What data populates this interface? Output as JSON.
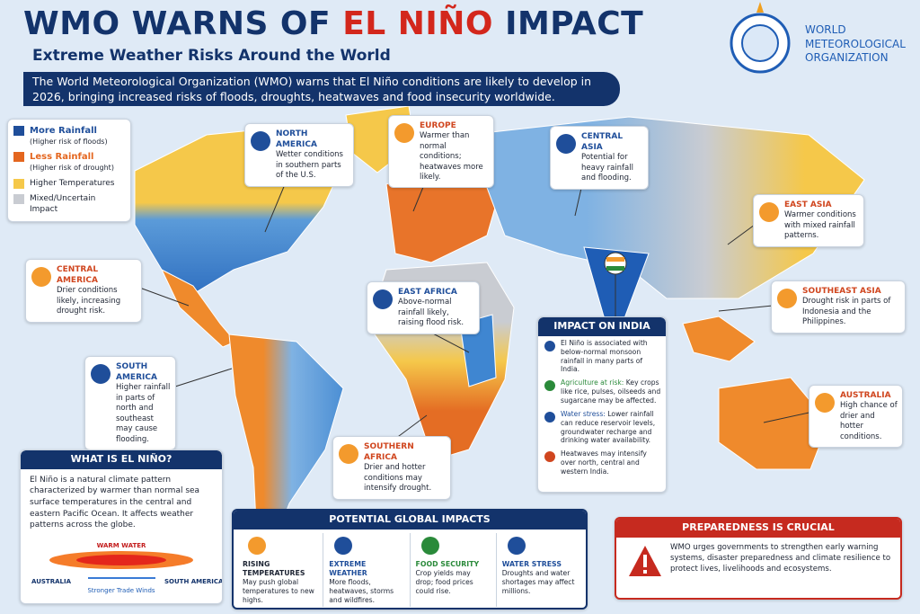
{
  "header": {
    "title_start": "WMO WARNS OF",
    "title_highlight": "EL NIÑO",
    "title_end": "IMPACT",
    "subtitle": "Extreme Weather Risks Around the World",
    "org_lines": [
      "WORLD",
      "METEOROLOGICAL",
      "ORGANIZATION"
    ]
  },
  "intro": "The World Meteorological Organization (WMO) warns that El Niño conditions are likely to develop in 2026, bringing increased risks of floods, droughts, heatwaves and food insecurity worldwide.",
  "legend": [
    {
      "label": "More Rainfall",
      "note": "(Higher risk of floods)"
    },
    {
      "label": "Less Rainfall",
      "note": "(Higher risk of drought)"
    },
    {
      "label": "Higher Temperatures"
    },
    {
      "label": "Mixed/Uncertain Impact"
    }
  ],
  "regions": [
    {
      "title": "NORTH AMERICA",
      "text": "Wetter conditions in southern parts of the U.S."
    },
    {
      "title": "EUROPE",
      "text": "Warmer than normal conditions; heatwaves more likely."
    },
    {
      "title": "CENTRAL ASIA",
      "text": "Potential for heavy rainfall and flooding."
    },
    {
      "title": "EAST ASIA",
      "text": "Warmer conditions with mixed rainfall patterns."
    },
    {
      "title": "CENTRAL AMERICA",
      "text": "Drier conditions likely, increasing drought risk."
    },
    {
      "title": "EAST AFRICA",
      "text": "Above-normal rainfall likely, raising flood risk."
    },
    {
      "title": "SOUTHEAST ASIA",
      "text": "Drought risk in parts of Indonesia and the Philippines."
    },
    {
      "title": "SOUTH AMERICA",
      "text": "Higher rainfall in parts of north and southeast may cause flooding."
    },
    {
      "title": "AUSTRALIA",
      "text": "High chance of drier and hotter conditions."
    },
    {
      "title": "SOUTHERN AFRICA",
      "text": "Drier and hotter conditions may intensify drought."
    }
  ],
  "india": {
    "title": "IMPACT ON INDIA",
    "items": [
      {
        "text": "El Niño is associated with below-normal monsoon rainfall in many parts of India."
      },
      {
        "lead": "Agriculture at risk:",
        "text": "Key crops like rice, pulses, oilseeds and sugarcane may be affected."
      },
      {
        "lead": "Water stress:",
        "text": "Lower rainfall can reduce reservoir levels, groundwater recharge and drinking water availability."
      },
      {
        "text": "Heatwaves may intensify over north, central and western India."
      }
    ]
  },
  "what_is": {
    "title": "WHAT IS EL NIÑO?",
    "text": "El Niño is a natural climate pattern characterized by warmer than normal sea surface temperatures in the central and eastern Pacific Ocean. It affects weather patterns across the globe.",
    "warm_water": "WARM WATER",
    "left": "AUSTRALIA",
    "right": "SOUTH AMERICA",
    "winds": "Stronger Trade Winds"
  },
  "impacts": {
    "title": "POTENTIAL GLOBAL IMPACTS",
    "items": [
      {
        "title": "RISING TEMPERATURES",
        "text": "May push global temperatures to new highs."
      },
      {
        "title": "EXTREME WEATHER",
        "text": "More floods, heatwaves, storms and wildfires."
      },
      {
        "title": "FOOD SECURITY",
        "text": "Crop yields may drop; food prices could rise."
      },
      {
        "title": "WATER STRESS",
        "text": "Droughts and water shortages may affect millions."
      }
    ]
  },
  "preparedness": {
    "title": "PREPAREDNESS IS CRUCIAL",
    "text": "WMO urges governments to strengthen early warning systems, disaster preparedness and climate resilience to protect lives, livelihoods and ecosystems."
  }
}
